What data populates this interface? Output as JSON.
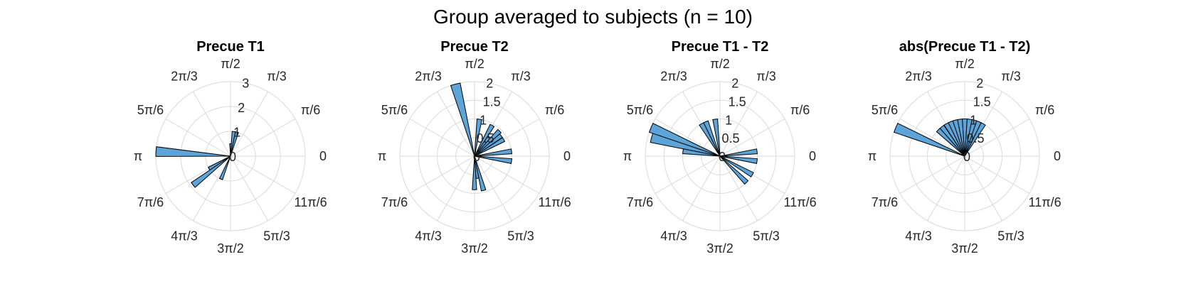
{
  "figure": {
    "title": "Group averaged to subjects (n = 10)",
    "bar_color": "#5DA5D9",
    "edge_color": "#000000",
    "grid_color": "#d9d9d9"
  },
  "chart_data": [
    {
      "type": "polar_histogram",
      "title": "Precue T1",
      "theta_labels": [
        "0",
        "π/6",
        "π/3",
        "π/2",
        "2π/3",
        "5π/6",
        "π",
        "7π/6",
        "4π/3",
        "3π/2",
        "5π/3",
        "11π/6"
      ],
      "rlim": [
        0,
        3
      ],
      "rticks": [
        0,
        1,
        2,
        3
      ],
      "rtick_labels": [
        "0",
        "1",
        "2",
        "3"
      ],
      "bin_width_rad": 0.1309,
      "bins": [
        {
          "angle_rad": 1.31,
          "value": 1.0
        },
        {
          "angle_rad": 1.44,
          "value": 1.0
        },
        {
          "angle_rad": 1.57,
          "value": 0.5
        },
        {
          "angle_rad": 3.08,
          "value": 3.0
        },
        {
          "angle_rad": 3.67,
          "value": 1.0
        },
        {
          "angle_rad": 3.8,
          "value": 1.9
        },
        {
          "angle_rad": 4.32,
          "value": 1.0
        }
      ]
    },
    {
      "type": "polar_histogram",
      "title": "Precue T2",
      "theta_labels": [
        "0",
        "π/6",
        "π/3",
        "π/2",
        "2π/3",
        "5π/6",
        "π",
        "7π/6",
        "4π/3",
        "3π/2",
        "5π/3",
        "11π/6"
      ],
      "rlim": [
        0,
        2
      ],
      "rticks": [
        0,
        0.5,
        1,
        1.5,
        2
      ],
      "rtick_labels": [
        "0",
        "0.5",
        "1",
        "1.5",
        "2"
      ],
      "bin_width_rad": 0.1309,
      "bins": [
        {
          "angle_rad": 1.83,
          "value": 2.0
        },
        {
          "angle_rad": 1.44,
          "value": 1.0
        },
        {
          "angle_rad": 1.05,
          "value": 0.95
        },
        {
          "angle_rad": 0.92,
          "value": 0.65
        },
        {
          "angle_rad": 0.79,
          "value": 0.95
        },
        {
          "angle_rad": 0.66,
          "value": 0.9
        },
        {
          "angle_rad": 0.52,
          "value": 0.9
        },
        {
          "angle_rad": 0.13,
          "value": 1.0
        },
        {
          "angle_rad": 6.15,
          "value": 1.0
        },
        {
          "angle_rad": 4.97,
          "value": 0.95
        },
        {
          "angle_rad": 4.84,
          "value": 0.6
        },
        {
          "angle_rad": 4.71,
          "value": 0.9
        }
      ]
    },
    {
      "type": "polar_histogram",
      "title": "Precue T1 - T2",
      "theta_labels": [
        "0",
        "π/6",
        "π/3",
        "π/2",
        "2π/3",
        "5π/6",
        "π",
        "7π/6",
        "4π/3",
        "3π/2",
        "5π/3",
        "11π/6"
      ],
      "rlim": [
        0,
        2
      ],
      "rticks": [
        0,
        0.5,
        1,
        1.5,
        2
      ],
      "rtick_labels": [
        "0",
        "0.5",
        "1",
        "1.5",
        "2"
      ],
      "bin_width_rad": 0.1309,
      "bins": [
        {
          "angle_rad": 2.75,
          "value": 2.0
        },
        {
          "angle_rad": 2.88,
          "value": 1.9
        },
        {
          "angle_rad": 3.01,
          "value": 1.0
        },
        {
          "angle_rad": 2.09,
          "value": 1.0
        },
        {
          "angle_rad": 1.96,
          "value": 1.0
        },
        {
          "angle_rad": 1.7,
          "value": 1.0
        },
        {
          "angle_rad": 0.13,
          "value": 1.0
        },
        {
          "angle_rad": 6.15,
          "value": 1.0
        },
        {
          "angle_rad": 5.76,
          "value": 1.0
        },
        {
          "angle_rad": 5.5,
          "value": 1.0
        }
      ]
    },
    {
      "type": "polar_histogram",
      "title": "abs(Precue T1 - T2)",
      "theta_labels": [
        "0",
        "π/6",
        "π/3",
        "π/2",
        "2π/3",
        "5π/6",
        "π",
        "7π/6",
        "4π/3",
        "3π/2",
        "5π/3",
        "11π/6"
      ],
      "rlim": [
        0,
        2
      ],
      "rticks": [
        0,
        0.5,
        1,
        1.5,
        2
      ],
      "rtick_labels": [
        "0",
        "0.5",
        "1",
        "1.5",
        "2"
      ],
      "bin_width_rad": 0.1309,
      "bins": [
        {
          "angle_rad": 2.75,
          "value": 2.0
        },
        {
          "angle_rad": 2.36,
          "value": 1.0
        },
        {
          "angle_rad": 2.23,
          "value": 1.0
        },
        {
          "angle_rad": 2.09,
          "value": 1.0
        },
        {
          "angle_rad": 1.96,
          "value": 1.0
        },
        {
          "angle_rad": 1.83,
          "value": 1.0
        },
        {
          "angle_rad": 1.7,
          "value": 1.0
        },
        {
          "angle_rad": 1.57,
          "value": 1.0
        },
        {
          "angle_rad": 1.44,
          "value": 1.0
        },
        {
          "angle_rad": 1.31,
          "value": 1.0
        },
        {
          "angle_rad": 1.18,
          "value": 1.0
        },
        {
          "angle_rad": 1.05,
          "value": 1.0
        }
      ]
    }
  ]
}
